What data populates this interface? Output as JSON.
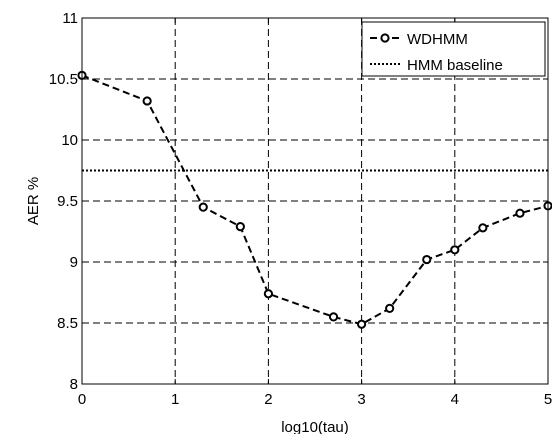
{
  "chart_data": {
    "type": "line",
    "title": "",
    "xlabel": "log10(tau)",
    "ylabel": "AER %",
    "xlim": [
      0,
      5
    ],
    "ylim": [
      8,
      11
    ],
    "xticks": [
      0,
      1,
      2,
      3,
      4,
      5
    ],
    "yticks": [
      8,
      8.5,
      9,
      9.5,
      10,
      10.5,
      11
    ],
    "xtick_labels": [
      "0",
      "1",
      "2",
      "3",
      "4",
      "5"
    ],
    "ytick_labels": [
      "8",
      "8.5",
      "9",
      "9.5",
      "10",
      "10.5",
      "11"
    ],
    "grid": true,
    "legend_position": "top-right",
    "series": [
      {
        "name": "WDHMM",
        "style": "dashed-circle-markers",
        "color": "#000000",
        "x": [
          0,
          0.699,
          1.301,
          1.699,
          2,
          2.699,
          3,
          3.301,
          3.699,
          4,
          4.301,
          4.699,
          5
        ],
        "y": [
          10.53,
          10.32,
          9.45,
          9.29,
          8.74,
          8.55,
          8.49,
          8.62,
          9.02,
          9.1,
          9.28,
          9.4,
          9.46
        ]
      },
      {
        "name": "HMM baseline",
        "style": "dotted",
        "color": "#000000",
        "x": [
          0,
          5
        ],
        "y": [
          9.75,
          9.75
        ]
      }
    ]
  }
}
